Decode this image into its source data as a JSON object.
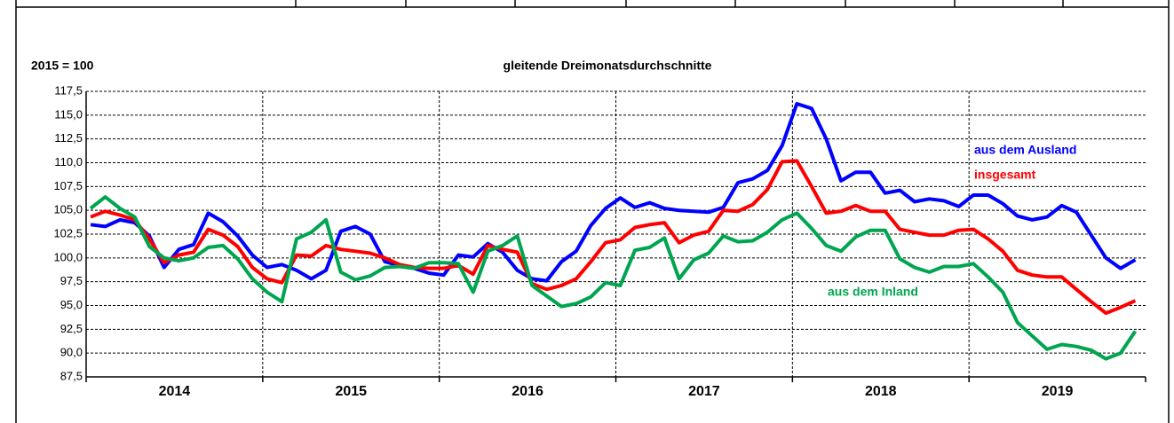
{
  "chart_data": {
    "type": "line",
    "title": "gleitende Dreimonatsdurchschnitte",
    "subtitle": "2015 = 100",
    "categories": [
      null,
      null,
      null,
      null,
      null,
      null,
      null,
      null,
      null,
      null,
      null,
      null,
      null,
      null,
      null,
      null,
      null,
      null,
      null,
      null,
      null,
      null,
      null,
      null,
      null,
      null,
      null,
      null,
      null,
      null,
      null,
      null,
      null,
      null,
      null,
      null,
      null,
      null,
      null,
      null,
      null,
      null,
      null,
      null,
      null,
      null,
      null,
      null,
      null,
      null,
      null,
      null,
      null,
      null,
      null,
      null,
      null,
      null,
      null,
      null,
      null,
      null,
      null,
      null,
      null,
      null,
      null,
      null,
      null,
      null,
      null,
      null
    ],
    "x_group_labels": [
      "2014",
      "2015",
      "2016",
      "2017",
      "2018",
      "2019"
    ],
    "ylim": [
      87.5,
      117.5
    ],
    "yticks": [
      {
        "value": 87.5,
        "label": "87,5"
      },
      {
        "value": 90,
        "label": "90,0"
      },
      {
        "value": 92.5,
        "label": "92,5"
      },
      {
        "value": 95,
        "label": "95,0"
      },
      {
        "value": 97.5,
        "label": "97,5"
      },
      {
        "value": 100,
        "label": "100,0"
      },
      {
        "value": 102.5,
        "label": "102,5"
      },
      {
        "value": 105,
        "label": "105,0"
      },
      {
        "value": 107.5,
        "label": "107,5"
      },
      {
        "value": 110,
        "label": "110,0"
      },
      {
        "value": 112.5,
        "label": "112,5"
      },
      {
        "value": 115,
        "label": "115,0"
      },
      {
        "value": 117.5,
        "label": "117,5"
      }
    ],
    "grid": true,
    "series": [
      {
        "name": "aus dem Ausland",
        "color": "#0000ff",
        "values": [
          103.5,
          103.3,
          104.0,
          103.7,
          102.3,
          99.0,
          100.9,
          101.4,
          104.7,
          103.8,
          102.3,
          100.3,
          99.0,
          99.3,
          98.7,
          97.8,
          98.7,
          102.8,
          103.3,
          102.5,
          99.6,
          99.2,
          98.9,
          98.4,
          98.2,
          100.3,
          100.1,
          101.5,
          100.6,
          98.7,
          97.8,
          97.6,
          99.6,
          100.7,
          103.4,
          105.2,
          106.3,
          105.3,
          105.8,
          105.2,
          105.0,
          104.9,
          104.8,
          105.3,
          107.9,
          108.3,
          109.2,
          111.8,
          116.2,
          115.7,
          112.5,
          108.1,
          109.0,
          109.0,
          106.8,
          107.1,
          105.9,
          106.2,
          106.0,
          105.4,
          106.6,
          106.6,
          105.7,
          104.4,
          104.0,
          104.3,
          105.5,
          104.8,
          102.4,
          100.0,
          98.9,
          99.8
        ]
      },
      {
        "name": "insgesamt",
        "color": "#ff0000",
        "values": [
          104.3,
          104.9,
          104.5,
          104.0,
          102.0,
          99.5,
          100.3,
          100.6,
          103.0,
          102.4,
          101.2,
          99.0,
          97.8,
          97.4,
          100.3,
          100.2,
          101.3,
          100.9,
          100.7,
          100.5,
          100.0,
          99.3,
          99.0,
          98.9,
          98.9,
          99.2,
          98.3,
          101.3,
          100.9,
          100.6,
          97.3,
          96.7,
          97.1,
          97.8,
          99.6,
          101.6,
          101.9,
          103.2,
          103.5,
          103.7,
          101.6,
          102.4,
          102.8,
          105.0,
          104.9,
          105.6,
          107.2,
          110.1,
          110.2,
          107.5,
          104.7,
          104.9,
          105.5,
          104.9,
          104.9,
          103.0,
          102.7,
          102.4,
          102.4,
          102.9,
          103.0,
          102.0,
          100.7,
          98.7,
          98.2,
          98.0,
          98.0,
          96.7,
          95.4,
          94.2,
          94.8,
          95.5
        ]
      },
      {
        "name": "aus dem Inland",
        "color": "#00a550",
        "values": [
          105.2,
          106.4,
          105.2,
          104.3,
          101.2,
          100.0,
          99.7,
          100.0,
          101.1,
          101.3,
          99.9,
          97.8,
          96.4,
          95.4,
          102.0,
          102.7,
          104.0,
          98.5,
          97.7,
          98.1,
          99.0,
          99.1,
          98.9,
          99.5,
          99.5,
          99.4,
          96.4,
          100.7,
          101.3,
          102.3,
          97.1,
          96.0,
          94.9,
          95.2,
          95.9,
          97.4,
          97.1,
          100.8,
          101.1,
          102.1,
          97.8,
          99.8,
          100.5,
          102.3,
          101.7,
          101.8,
          102.7,
          104.0,
          104.7,
          103.1,
          101.3,
          100.7,
          102.2,
          102.9,
          102.9,
          99.9,
          99.0,
          98.5,
          99.1,
          99.1,
          99.4,
          98.0,
          96.4,
          93.2,
          91.8,
          90.4,
          90.9,
          90.7,
          90.3,
          89.4,
          90.0,
          92.3
        ]
      }
    ]
  }
}
